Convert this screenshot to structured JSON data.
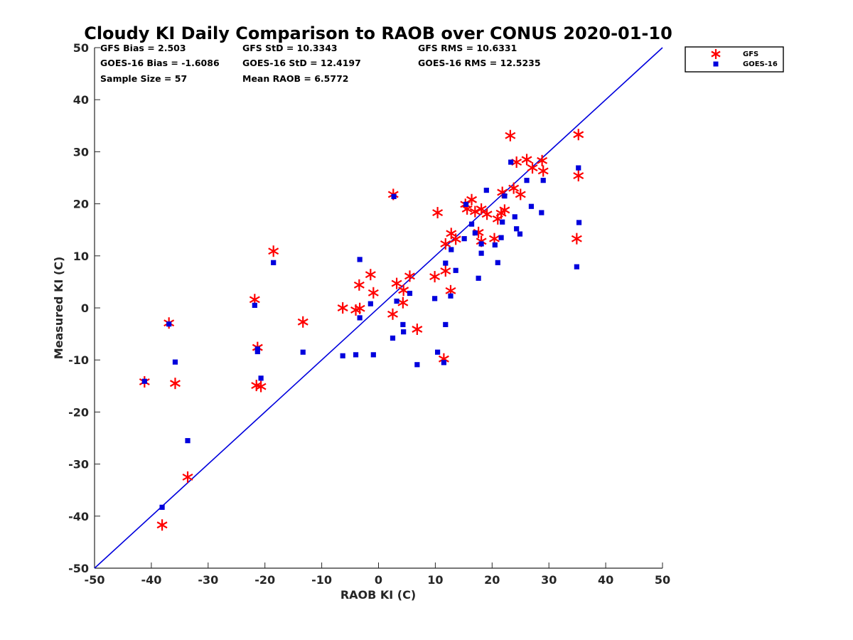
{
  "chart_data": {
    "type": "scatter",
    "title": "Cloudy KI Daily Comparison to RAOB over CONUS 2020-01-10",
    "xlabel": "RAOB KI (C)",
    "ylabel": "Measured KI (C)",
    "xlim": [
      -50,
      50
    ],
    "ylim": [
      -50,
      50
    ],
    "xticks": [
      "-50",
      "-40",
      "-30",
      "-20",
      "-10",
      "0",
      "10",
      "20",
      "30",
      "40",
      "50"
    ],
    "yticks": [
      "50",
      "40",
      "30",
      "20",
      "10",
      "0",
      "-10",
      "-20",
      "-30",
      "-40",
      "-50"
    ],
    "grid": false,
    "legend_position": "outside top-right",
    "reference_line": {
      "x": [
        -50,
        50
      ],
      "y": [
        -50,
        50
      ],
      "color": "#0000dd"
    },
    "stats": [
      [
        "GFS Bias = 2.503",
        "GFS StD = 10.3343",
        "GFS RMS = 10.6331"
      ],
      [
        "GOES-16 Bias = -1.6086",
        "GOES-16 StD = 12.4197",
        "GOES-16 RMS = 12.5235"
      ],
      [
        "Sample Size = 57",
        "Mean RAOB = 6.5772"
      ]
    ],
    "series": [
      {
        "name": "GFS",
        "marker": "asterisk",
        "color": "#ff0000",
        "points": [
          [
            -41.2,
            -14.2
          ],
          [
            -36.9,
            -2.9
          ],
          [
            -35.8,
            -14.5
          ],
          [
            -38.1,
            -41.7
          ],
          [
            -33.6,
            -32.5
          ],
          [
            -21.8,
            1.6
          ],
          [
            -21.3,
            -7.6
          ],
          [
            -21.5,
            -14.9
          ],
          [
            -20.7,
            -15.1
          ],
          [
            -18.5,
            10.9
          ],
          [
            -13.3,
            -2.7
          ],
          [
            -6.3,
            0.0
          ],
          [
            -4.0,
            -0.4
          ],
          [
            -3.3,
            -0.1
          ],
          [
            -3.4,
            4.4
          ],
          [
            -1.4,
            6.4
          ],
          [
            -0.9,
            2.9
          ],
          [
            2.5,
            -1.2
          ],
          [
            2.6,
            21.8
          ],
          [
            3.2,
            4.7
          ],
          [
            4.3,
            1.0
          ],
          [
            4.4,
            3.4
          ],
          [
            5.5,
            6.1
          ],
          [
            6.8,
            -4.1
          ],
          [
            9.9,
            6.0
          ],
          [
            10.4,
            18.3
          ],
          [
            11.5,
            -9.8
          ],
          [
            11.8,
            7.1
          ],
          [
            11.8,
            12.3
          ],
          [
            12.7,
            3.3
          ],
          [
            12.8,
            14.3
          ],
          [
            13.6,
            13.2
          ],
          [
            15.3,
            19.9
          ],
          [
            15.6,
            19.0
          ],
          [
            16.4,
            20.8
          ],
          [
            17.0,
            18.5
          ],
          [
            17.6,
            14.5
          ],
          [
            18.1,
            19.0
          ],
          [
            18.1,
            12.8
          ],
          [
            19.1,
            18.0
          ],
          [
            20.4,
            13.3
          ],
          [
            21.0,
            17.1
          ],
          [
            21.6,
            18.2
          ],
          [
            21.8,
            22.2
          ],
          [
            22.2,
            18.8
          ],
          [
            23.2,
            33.1
          ],
          [
            23.8,
            23.0
          ],
          [
            24.3,
            28.0
          ],
          [
            25.0,
            21.8
          ],
          [
            26.1,
            28.5
          ],
          [
            27.1,
            26.9
          ],
          [
            28.8,
            28.3
          ],
          [
            29.0,
            26.3
          ],
          [
            35.2,
            33.3
          ],
          [
            35.2,
            25.4
          ],
          [
            34.9,
            13.3
          ]
        ]
      },
      {
        "name": "GOES-16",
        "marker": "square",
        "color": "#0000dd",
        "points": [
          [
            -41.2,
            -14.1
          ],
          [
            -36.9,
            -3.1
          ],
          [
            -35.8,
            -10.4
          ],
          [
            -38.1,
            -38.3
          ],
          [
            -33.6,
            -25.5
          ],
          [
            -21.8,
            0.5
          ],
          [
            -21.3,
            -7.9
          ],
          [
            -21.3,
            -8.4
          ],
          [
            -20.7,
            -13.5
          ],
          [
            -18.5,
            8.7
          ],
          [
            -13.3,
            -8.5
          ],
          [
            -6.3,
            -9.2
          ],
          [
            -4.0,
            -9.0
          ],
          [
            -3.3,
            9.3
          ],
          [
            -3.3,
            -1.9
          ],
          [
            -1.4,
            0.8
          ],
          [
            -0.9,
            -9.0
          ],
          [
            2.5,
            -5.8
          ],
          [
            2.7,
            21.4
          ],
          [
            3.2,
            1.3
          ],
          [
            4.3,
            -3.2
          ],
          [
            4.4,
            -4.6
          ],
          [
            5.5,
            2.8
          ],
          [
            6.8,
            -10.9
          ],
          [
            9.9,
            1.8
          ],
          [
            10.4,
            -8.5
          ],
          [
            11.5,
            -10.5
          ],
          [
            11.8,
            8.6
          ],
          [
            11.8,
            -3.2
          ],
          [
            12.7,
            2.3
          ],
          [
            12.8,
            11.2
          ],
          [
            13.6,
            7.2
          ],
          [
            15.1,
            13.3
          ],
          [
            15.4,
            19.9
          ],
          [
            16.4,
            16.1
          ],
          [
            17.0,
            14.4
          ],
          [
            17.6,
            5.7
          ],
          [
            18.1,
            12.3
          ],
          [
            18.1,
            10.5
          ],
          [
            19.0,
            22.6
          ],
          [
            20.5,
            12.1
          ],
          [
            21.0,
            8.7
          ],
          [
            21.6,
            13.5
          ],
          [
            21.8,
            16.5
          ],
          [
            22.2,
            21.5
          ],
          [
            23.3,
            28.0
          ],
          [
            24.0,
            17.5
          ],
          [
            24.3,
            15.2
          ],
          [
            24.9,
            14.2
          ],
          [
            26.1,
            24.5
          ],
          [
            26.9,
            19.5
          ],
          [
            28.7,
            18.3
          ],
          [
            29.0,
            24.5
          ],
          [
            35.2,
            26.9
          ],
          [
            35.3,
            16.4
          ],
          [
            34.9,
            7.9
          ]
        ]
      }
    ]
  }
}
